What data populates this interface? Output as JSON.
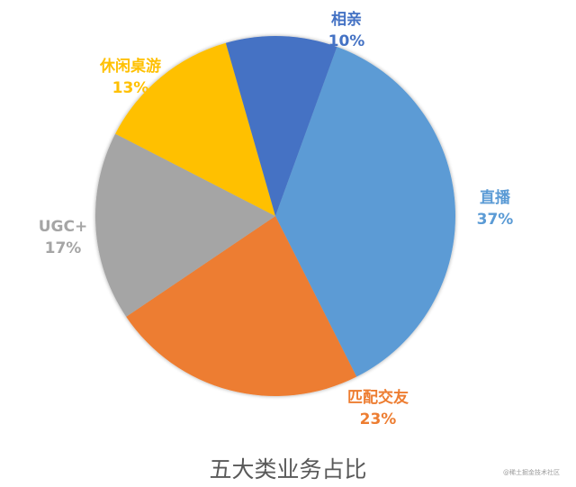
{
  "chart_data": {
    "type": "pie",
    "title": "五大类业务占比",
    "start_angle_deg_clockwise_from_top": 20,
    "slices": [
      {
        "label": "直播",
        "value": 37,
        "display": "37%",
        "color": "#5B9BD5"
      },
      {
        "label": "匹配交友",
        "value": 23,
        "display": "23%",
        "color": "#ED7D31"
      },
      {
        "label": "UGC+",
        "value": 17,
        "display": "17%",
        "color": "#A5A5A5"
      },
      {
        "label": "休闲桌游",
        "value": 13,
        "display": "13%",
        "color": "#FFC000"
      },
      {
        "label": "相亲",
        "value": 10,
        "display": "10%",
        "color": "#4472C4"
      }
    ],
    "legend": "none",
    "data_labels": "outside, category name + percentage"
  },
  "labels": {
    "live": {
      "name": "直播",
      "pct": "37%"
    },
    "match": {
      "name": "匹配交友",
      "pct": "23%"
    },
    "ugc": {
      "name": "UGC+",
      "pct": "17%"
    },
    "game": {
      "name": "休闲桌游",
      "pct": "13%"
    },
    "date": {
      "name": "相亲",
      "pct": "10%"
    }
  },
  "title": "五大类业务占比",
  "watermark": "@稀土掘金技术社区"
}
